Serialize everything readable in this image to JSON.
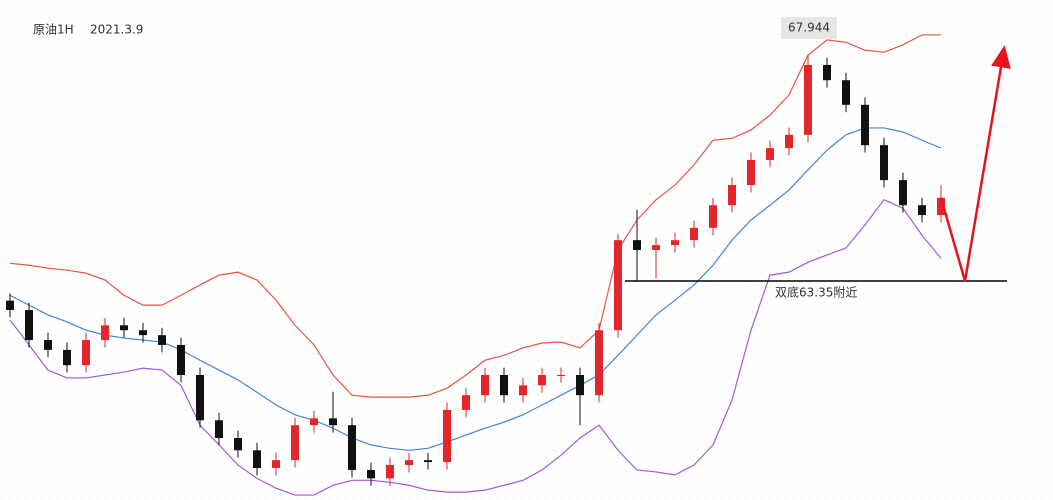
{
  "chart_data": {
    "type": "candlestick",
    "title": "原油1H",
    "subtitle": "2021.3.9",
    "ylim": [
      58.9,
      69.06
    ],
    "up_color": "#e3262b",
    "down_color": "#111111",
    "candles": {
      "open": [
        62.95,
        62.76,
        62.15,
        61.95,
        61.64,
        62.15,
        62.45,
        62.35,
        62.25,
        62.05,
        61.44,
        60.52,
        60.16,
        59.91,
        59.55,
        59.71,
        60.42,
        60.56,
        60.42,
        59.51,
        59.34,
        59.61,
        59.71,
        59.67,
        60.73,
        61.03,
        61.44,
        61.03,
        61.23,
        61.44,
        61.44,
        61.03,
        62.35,
        64.18,
        63.98,
        64.08,
        64.18,
        64.43,
        64.89,
        65.3,
        65.81,
        66.05,
        66.32,
        67.74,
        67.43,
        66.93,
        66.11,
        65.4,
        64.89,
        64.69
      ],
      "high": [
        63.1,
        62.91,
        62.3,
        62.1,
        62.3,
        62.6,
        62.6,
        62.5,
        62.4,
        62.2,
        61.59,
        60.67,
        60.31,
        60.06,
        59.86,
        60.57,
        60.71,
        61.1,
        60.57,
        59.66,
        59.76,
        59.86,
        59.86,
        60.88,
        61.18,
        61.59,
        61.59,
        61.38,
        61.59,
        61.59,
        61.59,
        62.5,
        64.3,
        64.8,
        64.23,
        64.33,
        64.58,
        65.04,
        65.45,
        65.96,
        66.2,
        66.47,
        67.944,
        67.89,
        67.58,
        67.08,
        66.26,
        65.55,
        65.04,
        65.3
      ],
      "low": [
        62.61,
        62.0,
        61.8,
        61.49,
        61.49,
        62.0,
        62.2,
        62.1,
        61.9,
        61.29,
        60.37,
        60.01,
        59.76,
        59.4,
        59.4,
        59.56,
        60.27,
        60.27,
        59.36,
        59.19,
        59.19,
        59.46,
        59.52,
        59.52,
        60.58,
        60.88,
        60.88,
        60.88,
        61.08,
        61.29,
        60.42,
        60.88,
        62.2,
        63.35,
        63.4,
        63.93,
        64.03,
        64.28,
        64.74,
        65.15,
        65.66,
        65.9,
        66.17,
        67.28,
        66.78,
        65.96,
        65.25,
        64.74,
        64.54,
        64.54
      ],
      "close": [
        62.76,
        62.15,
        61.95,
        61.64,
        62.15,
        62.45,
        62.35,
        62.25,
        62.05,
        61.44,
        60.52,
        60.16,
        59.91,
        59.55,
        59.71,
        60.42,
        60.56,
        60.42,
        59.51,
        59.34,
        59.61,
        59.71,
        59.67,
        60.73,
        61.03,
        61.44,
        61.03,
        61.23,
        61.44,
        61.44,
        61.03,
        62.35,
        64.18,
        63.98,
        64.08,
        64.18,
        64.43,
        64.89,
        65.3,
        65.81,
        66.05,
        66.32,
        67.74,
        67.43,
        66.93,
        66.11,
        65.4,
        64.89,
        64.69,
        65.04
      ]
    },
    "bands": [
      {
        "color": "#e8553e",
        "values": [
          63.71,
          63.67,
          63.61,
          63.57,
          63.51,
          63.37,
          63.06,
          62.86,
          62.86,
          63.06,
          63.27,
          63.47,
          63.53,
          63.37,
          62.96,
          62.45,
          62.05,
          61.44,
          61.03,
          60.99,
          60.99,
          60.99,
          61.03,
          61.17,
          61.44,
          61.74,
          61.84,
          61.99,
          62.09,
          62.11,
          61.99,
          62.35,
          63.98,
          64.59,
          65.0,
          65.3,
          65.71,
          66.21,
          66.25,
          66.42,
          66.72,
          67.13,
          67.94,
          68.25,
          68.2,
          68.04,
          68.0,
          68.15,
          68.35,
          68.35
        ]
      },
      {
        "color": "#3f86d8",
        "values": [
          63.06,
          62.86,
          62.66,
          62.52,
          62.35,
          62.25,
          62.19,
          62.15,
          62.11,
          61.95,
          61.74,
          61.54,
          61.34,
          61.09,
          60.83,
          60.63,
          60.52,
          60.36,
          60.16,
          60.02,
          59.95,
          59.91,
          59.95,
          60.08,
          60.22,
          60.36,
          60.48,
          60.63,
          60.83,
          61.03,
          61.23,
          61.44,
          61.84,
          62.25,
          62.66,
          62.96,
          63.27,
          63.67,
          64.18,
          64.59,
          64.89,
          65.2,
          65.61,
          66.01,
          66.32,
          66.46,
          66.46,
          66.38,
          66.21,
          66.05
        ]
      },
      {
        "color": "#a259d9",
        "values": [
          62.56,
          62.05,
          61.54,
          61.38,
          61.38,
          61.44,
          61.5,
          61.58,
          61.54,
          61.23,
          60.42,
          60.02,
          59.61,
          59.34,
          59.14,
          59.0,
          59.0,
          59.2,
          59.3,
          59.3,
          59.26,
          59.2,
          59.1,
          59.06,
          59.06,
          59.1,
          59.2,
          59.3,
          59.51,
          59.81,
          60.16,
          60.42,
          59.91,
          59.51,
          59.47,
          59.41,
          59.61,
          60.02,
          60.93,
          62.35,
          63.47,
          63.53,
          63.73,
          63.88,
          64.02,
          64.49,
          65.0,
          64.83,
          64.28,
          63.81
        ]
      }
    ],
    "peak_label": 67.944,
    "support": {
      "value": 63.35,
      "label": "双底63.35附近"
    }
  }
}
